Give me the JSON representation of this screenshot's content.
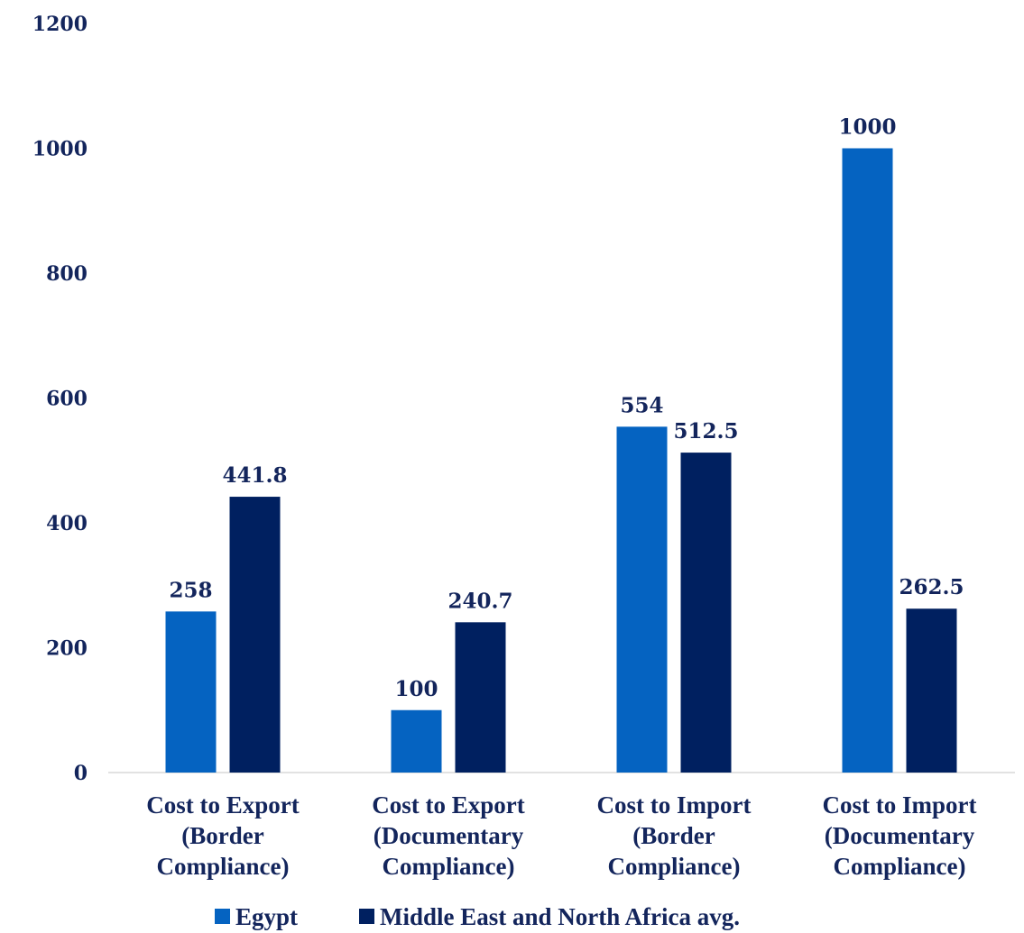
{
  "chart_data": {
    "type": "bar",
    "categories": [
      [
        "Cost to Export",
        "(Border",
        "Compliance)"
      ],
      [
        "Cost to Export",
        "(Documentary",
        "Compliance)"
      ],
      [
        "Cost to Import",
        "(Border",
        "Compliance)"
      ],
      [
        "Cost to Import",
        "(Documentary",
        "Compliance)"
      ]
    ],
    "series": [
      {
        "name": "Egypt",
        "color": "#0563c1",
        "values": [
          258,
          100,
          554,
          1000
        ],
        "labels": [
          "258",
          "100",
          "554",
          "1000"
        ]
      },
      {
        "name": "Middle East and North Africa avg.",
        "color": "#002060",
        "values": [
          441.8,
          240.7,
          512.5,
          262.5
        ],
        "labels": [
          "441.8",
          "240.7",
          "512.5",
          "262.5"
        ]
      }
    ],
    "ylim": [
      0,
      1200
    ],
    "yticks": [
      "0",
      "200",
      "400",
      "600",
      "800",
      "1000",
      "1200"
    ],
    "grid": false,
    "legend": "bottom-center",
    "colors": {
      "text": "#13255c",
      "axis": "#d9d9d9"
    }
  }
}
